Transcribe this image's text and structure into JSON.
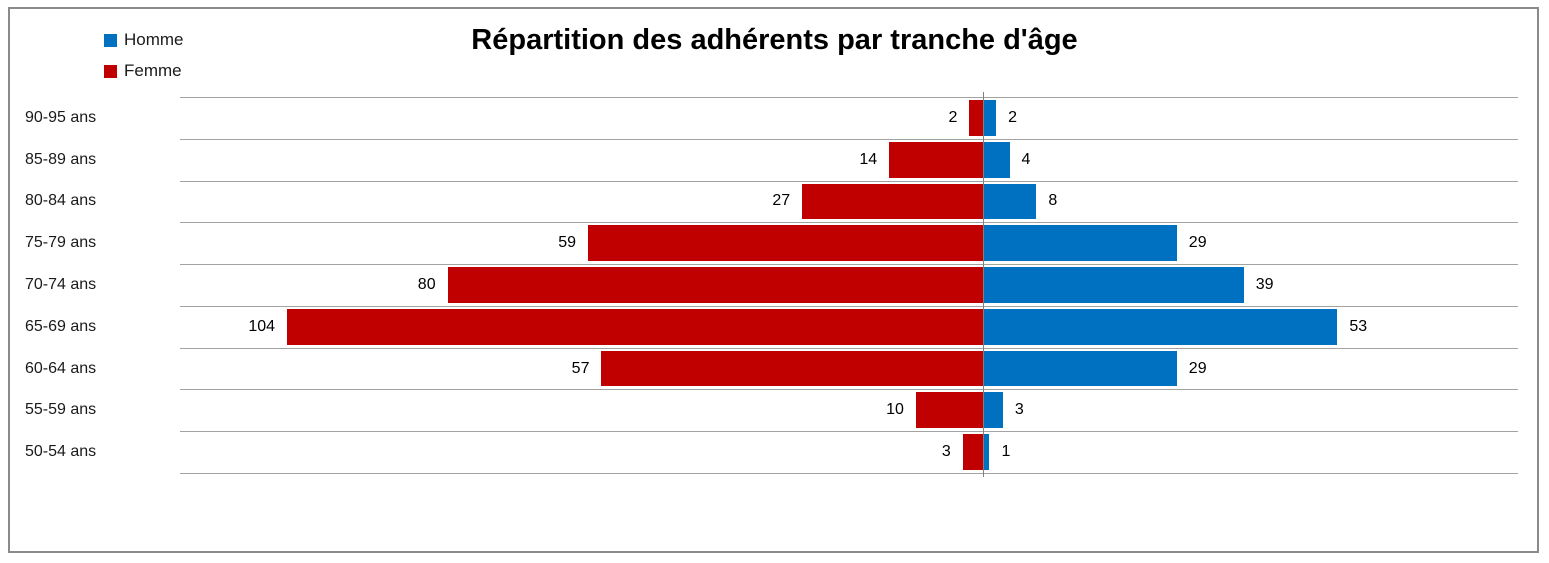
{
  "title": "Répartition des adhérents par tranche d'âge",
  "legend": [
    {
      "label": "Homme",
      "color": "#0070C0"
    },
    {
      "label": "Femme",
      "color": "#C00000"
    }
  ],
  "colors": {
    "homme": "#0070C0",
    "femme": "#C00000",
    "gridline": "#a3a3a3",
    "axis": "#808080",
    "frame_border": "#8a8a8a",
    "text": "#000000"
  },
  "chart_data": {
    "type": "bar",
    "subtype": "population-pyramid-horizontal",
    "title": "Répartition des adhérents par tranche d'âge",
    "categories": [
      "90-95 ans",
      "85-89 ans",
      "80-84 ans",
      "75-79 ans",
      "70-74 ans",
      "65-69 ans",
      "60-64 ans",
      "55-59 ans",
      "50-54 ans"
    ],
    "series": [
      {
        "name": "Homme",
        "side": "right",
        "color": "#0070C0",
        "values": [
          2,
          4,
          8,
          29,
          39,
          53,
          29,
          3,
          1
        ]
      },
      {
        "name": "Femme",
        "side": "left",
        "color": "#C00000",
        "values": [
          2,
          14,
          27,
          59,
          80,
          104,
          57,
          10,
          3
        ]
      }
    ],
    "xlim": [
      -120,
      80
    ],
    "x_axis_labels_visible": false,
    "value_labels": "outside-end",
    "gridlines": "horizontal-category-separators",
    "legend_position": "top-left"
  }
}
